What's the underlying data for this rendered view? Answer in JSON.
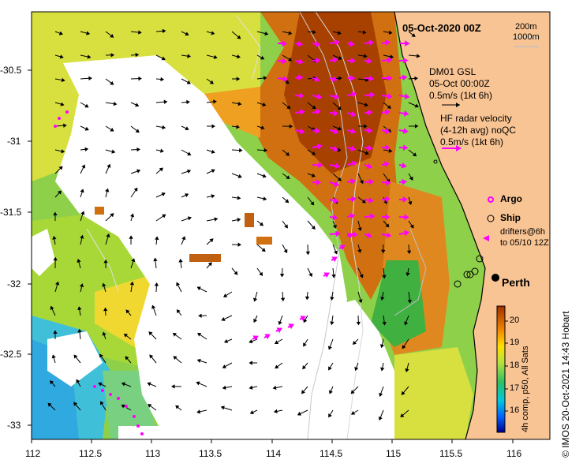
{
  "map": {
    "title": "05-Oct-2020 00Z",
    "isobaths": [
      "200m",
      "1000m"
    ],
    "gsl_legend": [
      "DM01 GSL",
      "05-Oct 00:00Z",
      "0.5m/s (1kt 6h)"
    ],
    "hf_legend": [
      "HF radar velocity",
      "(4-12h avg) noQC",
      "0.5m/s (1kt 6h)"
    ],
    "argo_label": "Argo",
    "ship_label": "Ship",
    "drifter_label": [
      "drifters@6h",
      "to 05/10 12Z"
    ],
    "city_label": "Perth",
    "colorbar_label": "4h comp, p50, All Sats",
    "colorbar_ticks": [
      "20",
      "19",
      "18",
      "17",
      "16"
    ],
    "credit": "© IMOS 20-Oct-2021 14:43 Hobart",
    "lon_ticks": [
      "112",
      "112.5",
      "113",
      "113.5",
      "114",
      "114.5",
      "115",
      "115.5",
      "116"
    ],
    "lat_ticks": [
      "-30.5",
      "-31",
      "-31.5",
      "-32",
      "-32.5",
      "-33"
    ],
    "colors": {
      "land": "#f9c493",
      "cloud": "#ffffff",
      "arrow_gsl": "#000000",
      "arrow_hf": "#ff00ff"
    }
  }
}
